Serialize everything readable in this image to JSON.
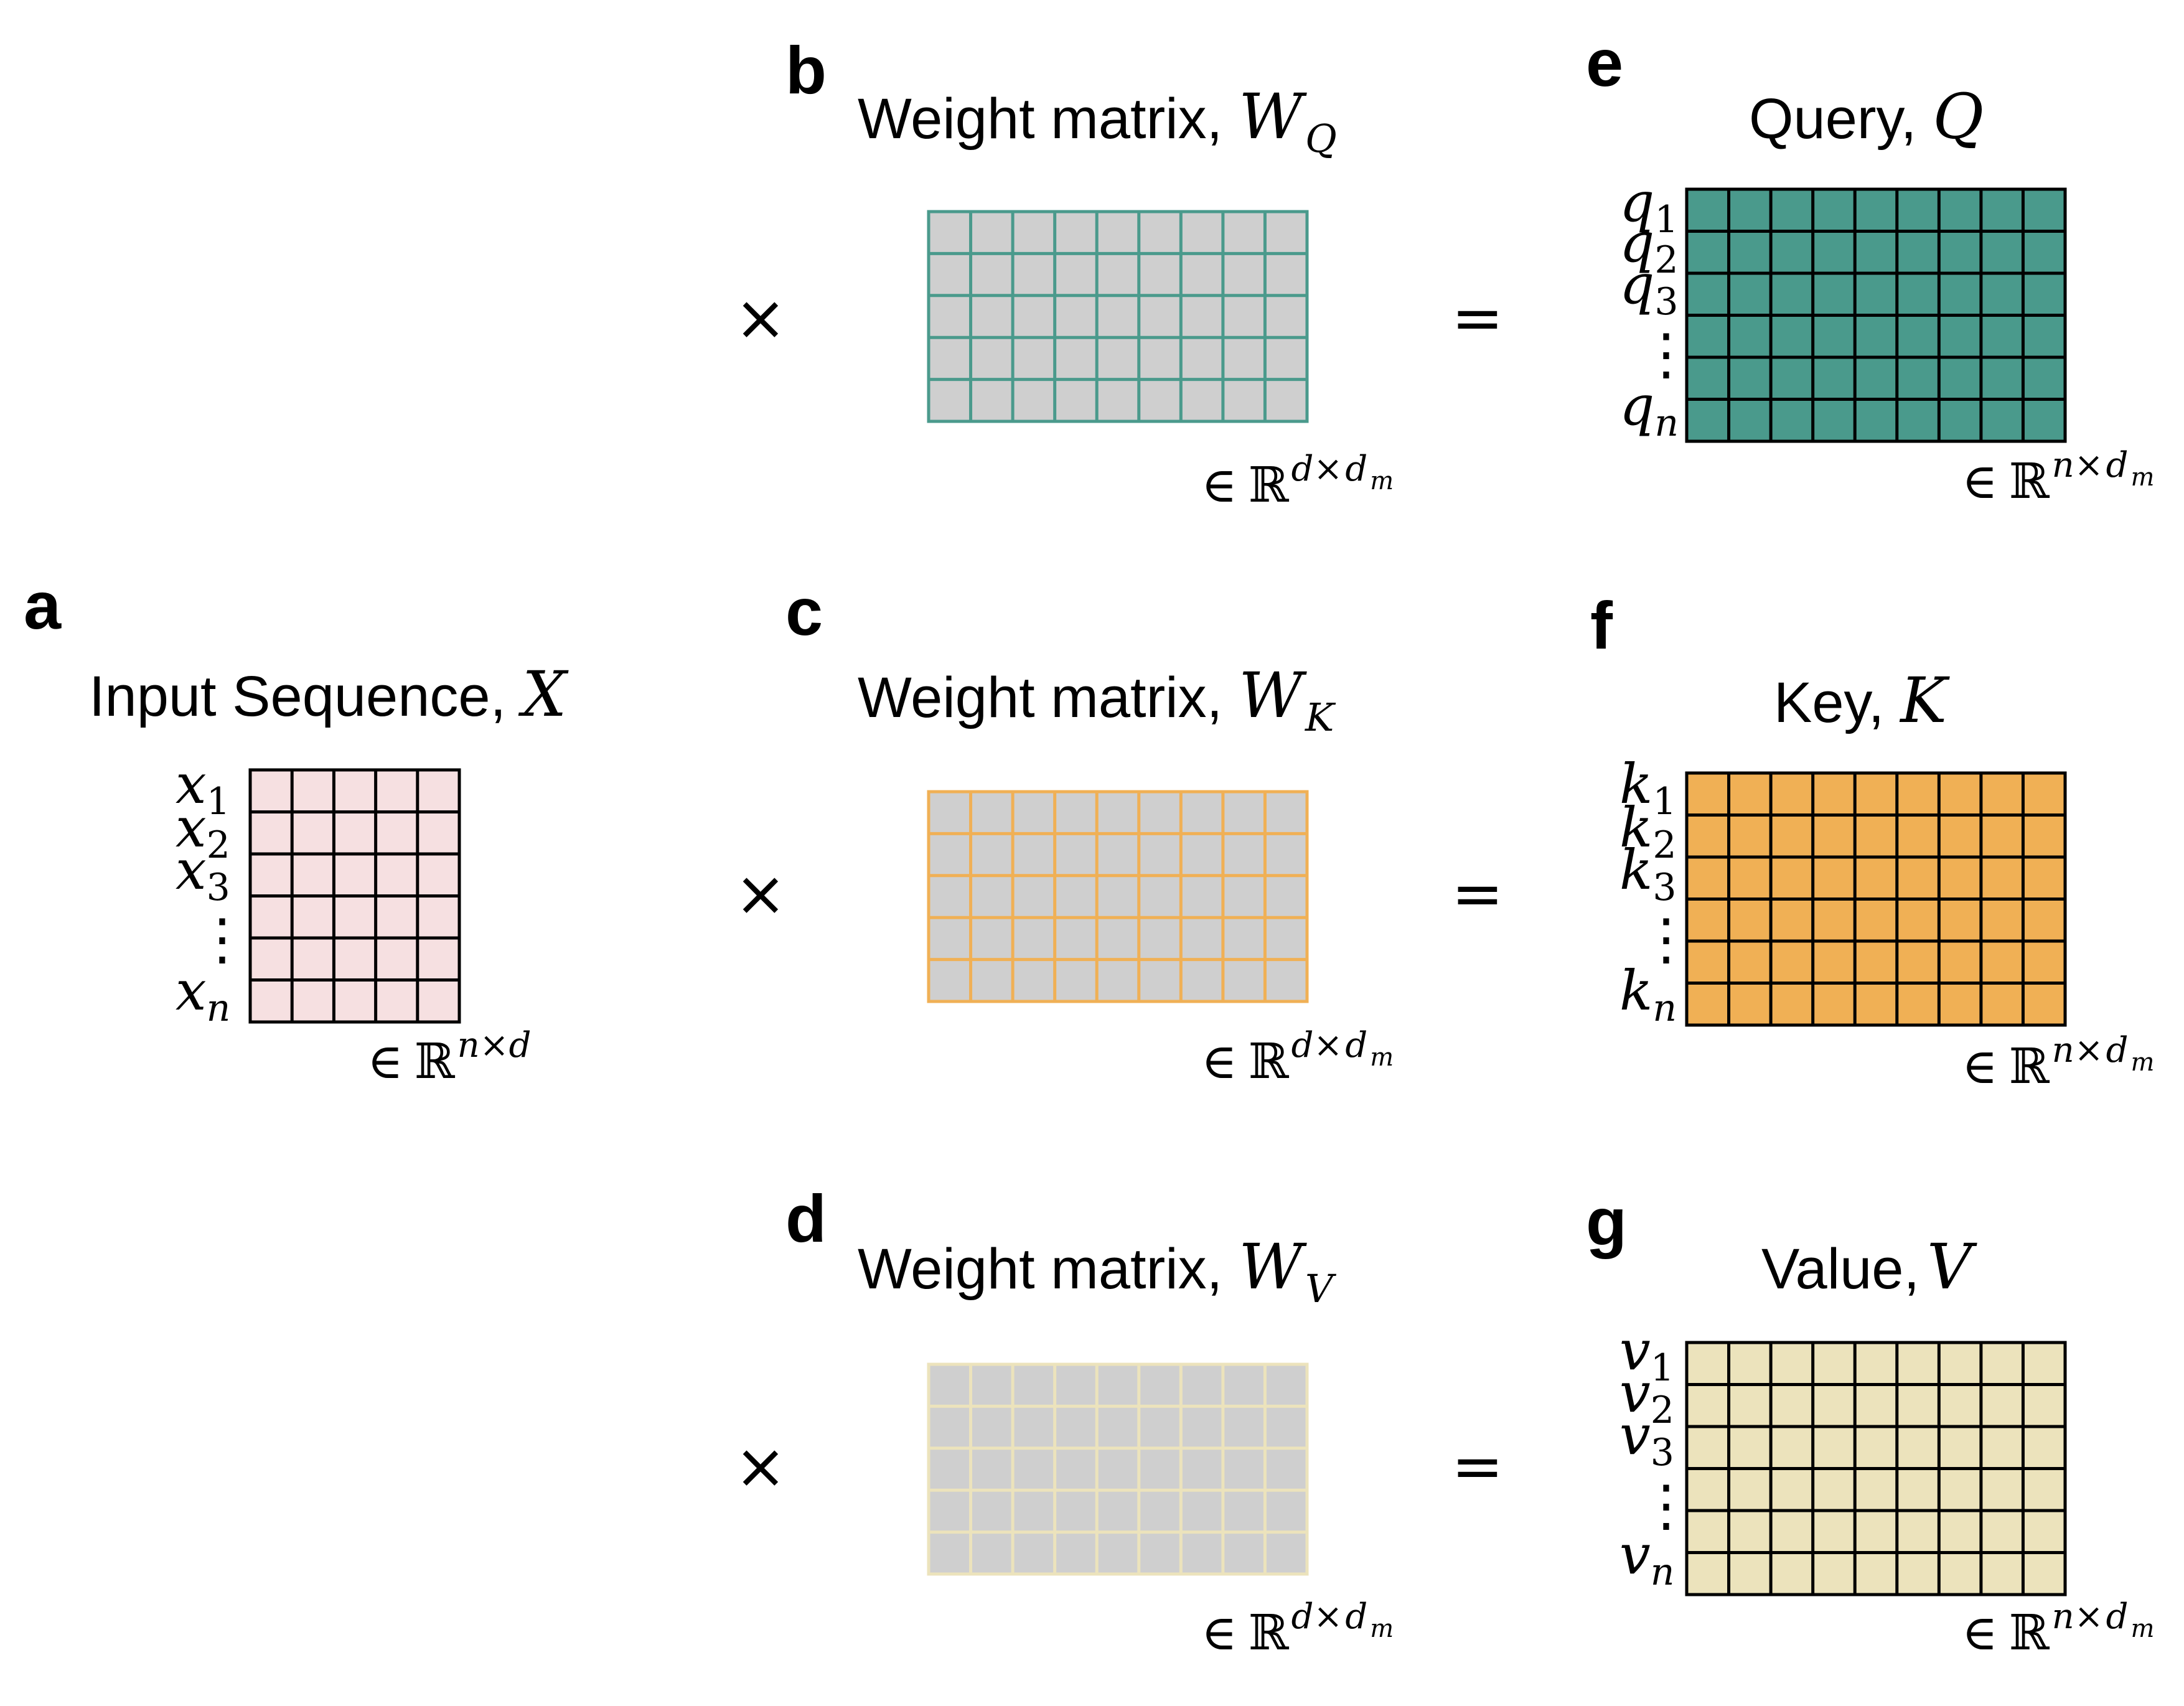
{
  "panels": {
    "a": {
      "letter": "a",
      "title": "Input Sequence,",
      "symbol": "X",
      "rows": [
        "x",
        "x",
        "x",
        "x"
      ],
      "subs": [
        "1",
        "2",
        "3",
        "n"
      ],
      "dim": "n×d"
    },
    "b": {
      "letter": "b",
      "title": "Weight matrix,",
      "symbol": "W",
      "sub": "Q",
      "dim": "d×",
      "dimsub": "d",
      "dimsub2": "m"
    },
    "c": {
      "letter": "c",
      "title": "Weight matrix,",
      "symbol": "W",
      "sub": "K",
      "dim": "d×",
      "dimsub": "d",
      "dimsub2": "m"
    },
    "d": {
      "letter": "d",
      "title": "Weight matrix,",
      "symbol": "W",
      "sub": "V",
      "dim": "d×",
      "dimsub": "d",
      "dimsub2": "m"
    },
    "e": {
      "letter": "e",
      "title": "Query,",
      "symbol": "Q",
      "rows": [
        "q",
        "q",
        "q",
        "q"
      ],
      "subs": [
        "1",
        "2",
        "3",
        "n"
      ],
      "dim": "n×",
      "dimsub": "d",
      "dimsub2": "m"
    },
    "f": {
      "letter": "f",
      "title": "Key,",
      "symbol": "K",
      "rows": [
        "k",
        "k",
        "k",
        "k"
      ],
      "subs": [
        "1",
        "2",
        "3",
        "n"
      ],
      "dim": "n×",
      "dimsub": "d",
      "dimsub2": "m"
    },
    "g": {
      "letter": "g",
      "title": "Value,",
      "symbol": "V",
      "rows": [
        "v",
        "v",
        "v",
        "v"
      ],
      "subs": [
        "1",
        "2",
        "3",
        "n"
      ],
      "dim": "n×",
      "dimsub": "d",
      "dimsub2": "m"
    }
  },
  "symbols": {
    "element_of": "∈",
    "reals": "ℝ",
    "times": "×",
    "equals": "=",
    "vdots": "⋮"
  },
  "colors": {
    "input_fill": "#f6e0e1",
    "teal": "#4a9a8c",
    "orange": "#f0b055",
    "cream": "#ece3bc",
    "weight_fill": "#cfcfcf",
    "outline": "#000000"
  }
}
